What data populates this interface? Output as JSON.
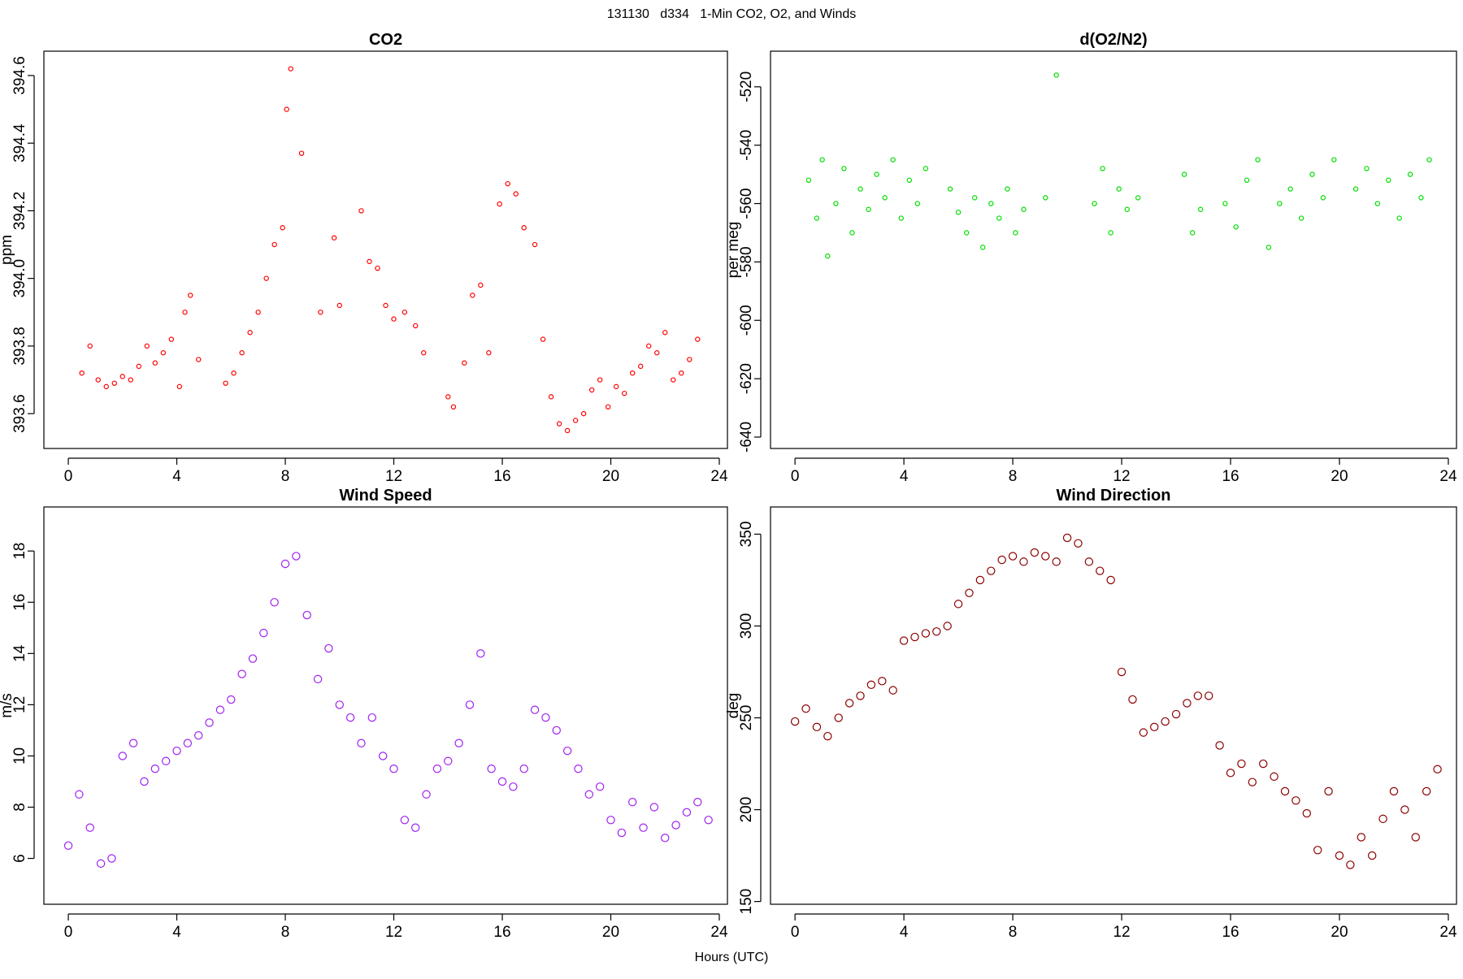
{
  "title": "131130   d334   1-Min CO2, O2, and Winds",
  "x_label": "Hours (UTC)",
  "chart_data": [
    {
      "type": "scatter",
      "title": "CO2",
      "y_label": "ppm",
      "color": "#ff0000",
      "xlim": [
        -0.9,
        24.3
      ],
      "xticks": [
        0,
        4,
        8,
        12,
        16,
        20,
        24
      ],
      "ylim": [
        393.497,
        394.672
      ],
      "yticks": [
        393.6,
        393.8,
        {
          "value": 394,
          "label": "394.0"
        },
        394.2,
        394.4,
        394.6
      ],
      "x": [
        0.5,
        0.8,
        1.1,
        1.4,
        1.7,
        2.0,
        2.3,
        2.6,
        2.9,
        3.2,
        3.5,
        3.8,
        4.1,
        4.3,
        4.5,
        4.8,
        5.8,
        6.1,
        6.4,
        6.7,
        7.0,
        7.3,
        7.6,
        7.9,
        8.05,
        8.2,
        8.6,
        9.3,
        9.8,
        10.0,
        10.8,
        11.1,
        11.4,
        11.7,
        12.0,
        12.4,
        12.8,
        13.1,
        14.0,
        14.2,
        14.6,
        14.9,
        15.2,
        15.5,
        15.9,
        16.2,
        16.5,
        16.8,
        17.2,
        17.5,
        17.8,
        18.1,
        18.4,
        18.7,
        19.0,
        19.3,
        19.6,
        19.9,
        20.2,
        20.5,
        20.8,
        21.1,
        21.4,
        21.7,
        22.0,
        22.3,
        22.6,
        22.9,
        23.2
      ],
      "values": [
        393.72,
        393.8,
        393.7,
        393.68,
        393.69,
        393.71,
        393.7,
        393.74,
        393.8,
        393.75,
        393.78,
        393.82,
        393.68,
        393.9,
        393.95,
        393.76,
        393.69,
        393.72,
        393.78,
        393.84,
        393.9,
        394.0,
        394.1,
        394.15,
        394.5,
        394.62,
        394.37,
        393.9,
        394.12,
        393.92,
        394.2,
        394.05,
        394.03,
        393.92,
        393.88,
        393.9,
        393.86,
        393.78,
        393.65,
        393.62,
        393.75,
        393.95,
        393.98,
        393.78,
        394.22,
        394.28,
        394.25,
        394.15,
        394.1,
        393.82,
        393.65,
        393.57,
        393.55,
        393.58,
        393.6,
        393.67,
        393.7,
        393.62,
        393.68,
        393.66,
        393.72,
        393.74,
        393.8,
        393.78,
        393.84,
        393.7,
        393.72,
        393.76,
        393.82
      ]
    },
    {
      "type": "scatter",
      "title": "d(O2/N2)",
      "y_label": "per meg",
      "color": "#00dd00",
      "xlim": [
        -0.9,
        24.3
      ],
      "xticks": [
        0,
        4,
        8,
        12,
        16,
        20,
        24
      ],
      "ylim": [
        -643.9,
        -507.8
      ],
      "yticks": [
        -640,
        -620,
        -600,
        -580,
        -560,
        -540,
        -520
      ],
      "x": [
        0.5,
        0.8,
        1.0,
        1.2,
        1.5,
        1.8,
        2.1,
        2.4,
        2.7,
        3.0,
        3.3,
        3.6,
        3.9,
        4.2,
        4.5,
        4.8,
        5.7,
        6.0,
        6.3,
        6.6,
        6.9,
        7.2,
        7.5,
        7.8,
        8.1,
        8.4,
        9.2,
        9.6,
        11.0,
        11.3,
        11.6,
        11.9,
        12.2,
        12.6,
        14.3,
        14.6,
        14.9,
        15.8,
        16.2,
        16.6,
        17.0,
        17.4,
        17.8,
        18.2,
        18.6,
        19.0,
        19.4,
        19.8,
        20.6,
        21.0,
        21.4,
        21.8,
        22.2,
        22.6,
        23.0,
        23.3
      ],
      "values": [
        -552,
        -565,
        -545,
        -578,
        -560,
        -548,
        -570,
        -555,
        -562,
        -550,
        -558,
        -545,
        -565,
        -552,
        -560,
        -548,
        -555,
        -563,
        -570,
        -558,
        -575,
        -560,
        -565,
        -555,
        -570,
        -562,
        -558,
        -516,
        -560,
        -548,
        -570,
        -555,
        -562,
        -558,
        -550,
        -570,
        -562,
        -560,
        -568,
        -552,
        -545,
        -575,
        -560,
        -555,
        -565,
        -550,
        -558,
        -545,
        -555,
        -548,
        -560,
        -552,
        -565,
        -550,
        -558,
        -545
      ]
    },
    {
      "type": "scatter",
      "title": "Wind Speed",
      "y_label": "m/s",
      "color": "#a020f0",
      "xlim": [
        -0.9,
        24.3
      ],
      "xticks": [
        0,
        4,
        8,
        12,
        16,
        20,
        24
      ],
      "ylim": [
        4.21,
        19.72
      ],
      "yticks": [
        6,
        8,
        10,
        12,
        14,
        16,
        18
      ],
      "x": [
        0,
        0.4,
        0.8,
        1.2,
        1.6,
        2.0,
        2.4,
        2.8,
        3.2,
        3.6,
        4.0,
        4.4,
        4.8,
        5.2,
        5.6,
        6.0,
        6.4,
        6.8,
        7.2,
        7.6,
        8.0,
        8.4,
        8.8,
        9.2,
        9.6,
        10.0,
        10.4,
        10.8,
        11.2,
        11.6,
        12.0,
        12.4,
        12.8,
        13.2,
        13.6,
        14.0,
        14.4,
        14.8,
        15.2,
        15.6,
        16.0,
        16.4,
        16.8,
        17.2,
        17.6,
        18.0,
        18.4,
        18.8,
        19.2,
        19.6,
        20.0,
        20.4,
        20.8,
        21.2,
        21.6,
        22.0,
        22.4,
        22.8,
        23.2,
        23.6
      ],
      "values": [
        6.5,
        8.5,
        7.2,
        5.8,
        6.0,
        10.0,
        10.5,
        9.0,
        9.5,
        9.8,
        10.2,
        10.5,
        10.8,
        11.3,
        11.8,
        12.2,
        13.2,
        13.8,
        14.8,
        16.0,
        17.5,
        17.8,
        15.5,
        13.0,
        14.2,
        12.0,
        11.5,
        10.5,
        11.5,
        10.0,
        9.5,
        7.5,
        7.2,
        8.5,
        9.5,
        9.8,
        10.5,
        12.0,
        14.0,
        9.5,
        9.0,
        8.8,
        9.5,
        11.8,
        11.5,
        11.0,
        10.2,
        9.5,
        8.5,
        8.8,
        7.5,
        7.0,
        8.2,
        7.2,
        8.0,
        6.8,
        7.3,
        7.8,
        8.2,
        7.5
      ]
    },
    {
      "type": "scatter",
      "title": "Wind Direction",
      "y_label": "deg",
      "color": "#8b0000",
      "xlim": [
        -0.9,
        24.3
      ],
      "xticks": [
        0,
        4,
        8,
        12,
        16,
        20,
        24
      ],
      "ylim": [
        148.5,
        364.8
      ],
      "yticks": [
        150,
        200,
        250,
        300,
        350
      ],
      "x": [
        0,
        0.4,
        0.8,
        1.2,
        1.6,
        2.0,
        2.4,
        2.8,
        3.2,
        3.6,
        4.0,
        4.4,
        4.8,
        5.2,
        5.6,
        6.0,
        6.4,
        6.8,
        7.2,
        7.6,
        8.0,
        8.4,
        8.8,
        9.2,
        9.6,
        10.0,
        10.4,
        10.8,
        11.2,
        11.6,
        12.0,
        12.4,
        12.8,
        13.2,
        13.6,
        14.0,
        14.4,
        14.8,
        15.2,
        15.6,
        16.0,
        16.4,
        16.8,
        17.2,
        17.6,
        18.0,
        18.4,
        18.8,
        19.2,
        19.6,
        20.0,
        20.4,
        20.8,
        21.2,
        21.6,
        22.0,
        22.4,
        22.8,
        23.2,
        23.6
      ],
      "values": [
        248,
        255,
        245,
        240,
        250,
        258,
        262,
        268,
        270,
        265,
        292,
        294,
        296,
        297,
        300,
        312,
        318,
        325,
        330,
        336,
        338,
        335,
        340,
        338,
        335,
        348,
        345,
        335,
        330,
        325,
        275,
        260,
        242,
        245,
        248,
        252,
        258,
        262,
        262,
        235,
        220,
        225,
        215,
        225,
        218,
        210,
        205,
        198,
        178,
        210,
        175,
        170,
        185,
        175,
        195,
        210,
        200,
        185,
        210,
        222
      ]
    }
  ]
}
